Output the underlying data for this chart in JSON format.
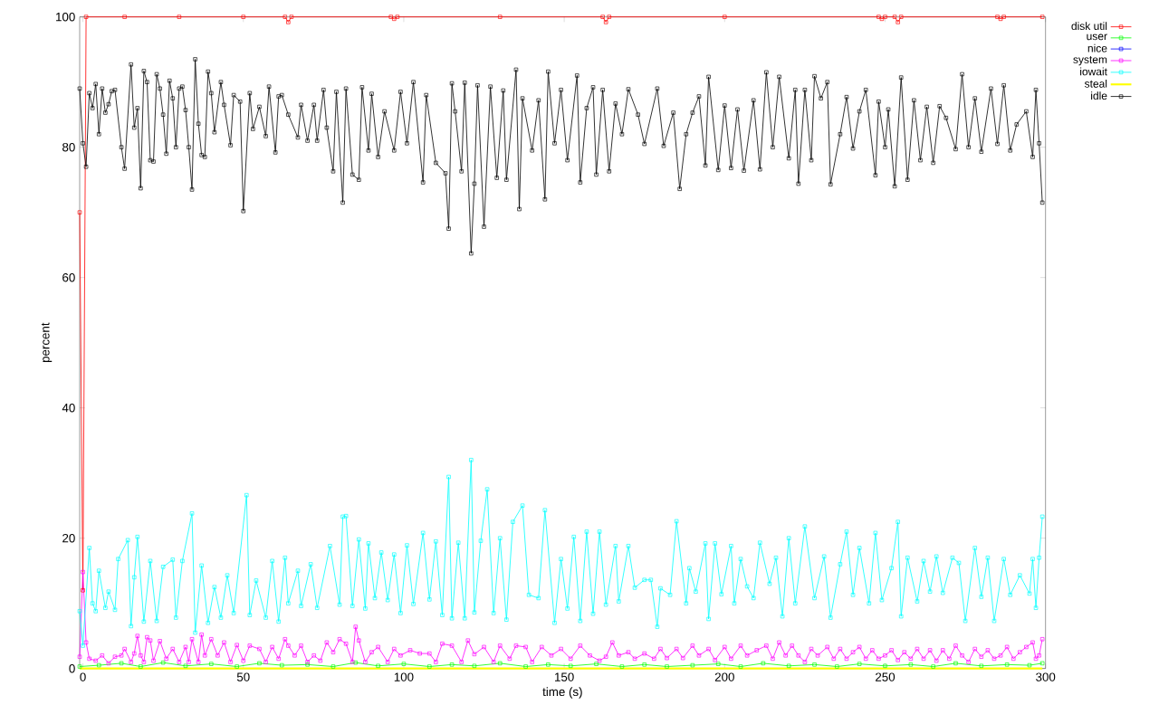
{
  "chart_data": {
    "type": "line",
    "xlabel": "time (s)",
    "ylabel": "percent",
    "xlim": [
      -1,
      300
    ],
    "xticks": [
      0,
      50,
      100,
      150,
      200,
      250,
      300
    ],
    "ylim": [
      0,
      100
    ],
    "yticks": [
      0,
      20,
      40,
      60,
      80,
      100
    ],
    "grid": false,
    "legend": "right",
    "line_style": "solid",
    "series": [
      {
        "name": "disk util",
        "color": "#ff0000",
        "marker": "square",
        "x": [
          -1,
          0,
          1,
          13,
          30,
          50,
          63,
          64,
          65,
          96,
          97,
          98,
          130,
          162,
          163,
          164,
          200,
          248,
          249,
          250,
          253,
          254,
          255,
          285,
          286,
          287,
          299
        ],
        "values": [
          70,
          12,
          100,
          100,
          100,
          100,
          100,
          99.2,
          100,
          100,
          99.7,
          100,
          100,
          100,
          99.2,
          100,
          100,
          100,
          99.7,
          100,
          100,
          99.2,
          100,
          100,
          99.7,
          100,
          100
        ]
      },
      {
        "name": "user",
        "color": "#00ff00",
        "marker": "square",
        "x": [
          -1,
          5,
          12,
          18,
          25,
          32,
          40,
          48,
          55,
          62,
          70,
          78,
          85,
          92,
          100,
          108,
          115,
          122,
          130,
          138,
          145,
          152,
          160,
          168,
          175,
          182,
          190,
          198,
          205,
          212,
          220,
          228,
          235,
          242,
          250,
          258,
          265,
          272,
          280,
          288,
          295,
          299
        ],
        "values": [
          0.3,
          0.5,
          0.8,
          0.3,
          0.9,
          0.4,
          0.7,
          0.3,
          0.8,
          0.5,
          0.6,
          0.3,
          0.9,
          0.4,
          0.7,
          0.3,
          0.6,
          0.4,
          0.8,
          0.3,
          0.6,
          0.4,
          0.7,
          0.3,
          0.6,
          0.3,
          0.5,
          0.7,
          0.3,
          0.8,
          0.4,
          0.6,
          0.3,
          0.7,
          0.4,
          0.6,
          0.3,
          0.8,
          0.4,
          0.6,
          0.5,
          0.8
        ]
      },
      {
        "name": "nice",
        "color": "#0000ff",
        "marker": "square"
      },
      {
        "name": "system",
        "color": "#ff00ff",
        "marker": "square",
        "x": [
          -1,
          0,
          1,
          2,
          4,
          6,
          8,
          10,
          12,
          13,
          15,
          16,
          17,
          18,
          19,
          20,
          21,
          22,
          24,
          26,
          28,
          30,
          32,
          33,
          34,
          36,
          37,
          38,
          40,
          42,
          44,
          46,
          48,
          50,
          52,
          55,
          57,
          59,
          61,
          63,
          64,
          66,
          68,
          70,
          72,
          74,
          76,
          78,
          80,
          82,
          84,
          85,
          86,
          88,
          90,
          92,
          95,
          97,
          99,
          102,
          105,
          108,
          110,
          112,
          115,
          118,
          120,
          122,
          125,
          128,
          130,
          133,
          135,
          138,
          140,
          143,
          146,
          149,
          152,
          155,
          158,
          161,
          163,
          165,
          167,
          170,
          172,
          175,
          178,
          180,
          182,
          185,
          187,
          190,
          192,
          195,
          197,
          200,
          202,
          205,
          207,
          210,
          213,
          215,
          217,
          219,
          221,
          223,
          225,
          227,
          229,
          232,
          234,
          236,
          238,
          240,
          242,
          244,
          246,
          248,
          250,
          252,
          254,
          256,
          258,
          260,
          262,
          264,
          266,
          268,
          270,
          272,
          274,
          276,
          278,
          280,
          282,
          284,
          286,
          288,
          290,
          292,
          294,
          296,
          297,
          298,
          299
        ],
        "values": [
          1.8,
          14.8,
          4,
          1.5,
          1.2,
          2,
          0.8,
          1.8,
          2,
          3,
          1,
          2.3,
          5,
          2,
          1,
          4.8,
          4.3,
          1.2,
          4.2,
          1.5,
          3,
          1,
          3.3,
          1,
          4.5,
          1,
          5.2,
          2,
          4.5,
          2,
          4,
          1,
          3.6,
          1.2,
          3.5,
          3,
          1,
          3.3,
          1.5,
          4.5,
          3.5,
          2,
          3.5,
          1,
          2,
          1.2,
          4,
          2.5,
          4.5,
          3.8,
          1,
          6.4,
          4.3,
          1,
          2.5,
          3.3,
          1,
          3,
          2,
          2.8,
          2.3,
          2.3,
          1,
          3.8,
          3.5,
          1,
          4.3,
          2.2,
          3.3,
          1,
          3.5,
          1.5,
          3.5,
          3.3,
          1,
          3.3,
          2,
          3,
          1.5,
          3.5,
          2,
          1.2,
          1.8,
          4,
          2,
          2.5,
          1.5,
          2.3,
          1.5,
          3,
          1.6,
          3,
          1.6,
          3.5,
          2,
          3,
          1.3,
          3.3,
          1.5,
          3.5,
          2,
          2.8,
          3.5,
          1.5,
          4,
          2,
          3.5,
          2,
          1,
          3,
          2,
          3.3,
          1.5,
          3,
          1.5,
          2.5,
          3.3,
          1.5,
          2.8,
          1.5,
          2,
          2.8,
          1.3,
          2.5,
          1.5,
          3,
          1.5,
          2.8,
          1.2,
          2.8,
          1.5,
          3.5,
          2,
          1,
          3,
          1.8,
          2.8,
          1.5,
          2,
          3.3,
          1.5,
          2.5,
          3.3,
          4,
          1.5,
          2,
          4.5
        ]
      },
      {
        "name": "iowait",
        "color": "#00ffff",
        "marker": "square",
        "x": [
          -1,
          0,
          2,
          3,
          4,
          5,
          7,
          8,
          10,
          11,
          14,
          15,
          16,
          17,
          19,
          21,
          23,
          25,
          28,
          29,
          31,
          34,
          35,
          37,
          39,
          41,
          43,
          45,
          47,
          51,
          52,
          54,
          57,
          59,
          61,
          63,
          64,
          67,
          68,
          71,
          73,
          77,
          80,
          81,
          82,
          84,
          86,
          88,
          89,
          91,
          93,
          95,
          97,
          99,
          101,
          103,
          106,
          108,
          110,
          112,
          114,
          115,
          117,
          119,
          121,
          122,
          124,
          126,
          128,
          130,
          132,
          134,
          137,
          139,
          142,
          144,
          147,
          149,
          151,
          153,
          155,
          157,
          159,
          161,
          163,
          166,
          167,
          170,
          172,
          175,
          177,
          179,
          180,
          183,
          185,
          188,
          189,
          191,
          194,
          195,
          197,
          199,
          202,
          203,
          205,
          207,
          209,
          211,
          214,
          216,
          218,
          220,
          222,
          225,
          228,
          231,
          233,
          236,
          238,
          240,
          242,
          245,
          247,
          249,
          252,
          254,
          255,
          257,
          260,
          262,
          264,
          266,
          268,
          271,
          273,
          275,
          278,
          280,
          282,
          284,
          287,
          289,
          292,
          295,
          296,
          297,
          298,
          299
        ],
        "values": [
          8.8,
          3.5,
          18.5,
          10,
          8.8,
          15,
          9.3,
          11.8,
          9,
          16.8,
          19.7,
          6.5,
          14,
          20.2,
          7.2,
          16.5,
          7.3,
          15.6,
          16.7,
          7.8,
          16.5,
          23.8,
          5.5,
          15.8,
          7,
          12.5,
          7.8,
          14.3,
          8.5,
          26.6,
          8.2,
          13.5,
          7.8,
          16.5,
          7.2,
          17,
          10,
          15,
          9.6,
          16,
          9.3,
          18.8,
          9.8,
          23.3,
          23.4,
          9.6,
          19.8,
          9.2,
          19.2,
          10.8,
          17.8,
          10.5,
          17.5,
          8.5,
          18.9,
          9.9,
          20.8,
          10.6,
          19.5,
          8.2,
          29.4,
          7.7,
          19.3,
          7.7,
          32,
          8.6,
          19.6,
          27.5,
          8.5,
          20,
          7.5,
          22.5,
          25,
          11.3,
          10.8,
          24.3,
          7,
          16.8,
          9.2,
          20.2,
          7.3,
          21,
          8.4,
          21,
          9.8,
          18.8,
          10.3,
          18.8,
          12.4,
          13.6,
          13.6,
          6.4,
          12.3,
          11.3,
          22.6,
          10,
          15.4,
          11.8,
          19.2,
          7.6,
          19.2,
          11.4,
          18.8,
          10,
          16.8,
          12.6,
          10.8,
          19.3,
          13,
          17,
          8,
          20,
          10,
          21.8,
          10.8,
          17.2,
          7.8,
          16,
          21,
          11.3,
          18.5,
          10,
          20.8,
          10.5,
          15.4,
          22.5,
          8,
          17,
          10.3,
          16.5,
          11.8,
          17.2,
          11.6,
          17,
          16.2,
          7.3,
          18.5,
          11,
          17,
          7.3,
          16.8,
          11.3,
          14.3,
          11.5,
          16.8,
          9.3,
          17,
          23.3
        ]
      },
      {
        "name": "steal",
        "color": "#ffff00",
        "marker": "none",
        "x": [
          -1,
          50,
          100,
          150,
          200,
          250,
          299
        ],
        "values": [
          0,
          0,
          0,
          0,
          0,
          0,
          0
        ]
      },
      {
        "name": "idle",
        "color": "#000000",
        "marker": "square",
        "x": [
          -1,
          0,
          1,
          2,
          3,
          4,
          5,
          6,
          7,
          8,
          9,
          10,
          12,
          13,
          15,
          16,
          17,
          18,
          19,
          20,
          21,
          22,
          23,
          24,
          25,
          26,
          27,
          28,
          29,
          30,
          31,
          32,
          33,
          34,
          35,
          36,
          37,
          38,
          39,
          40,
          41,
          43,
          44,
          46,
          47,
          49,
          50,
          52,
          53,
          55,
          57,
          58,
          60,
          61,
          62,
          64,
          67,
          68,
          70,
          72,
          73,
          75,
          76,
          78,
          79,
          81,
          82,
          84,
          86,
          87,
          89,
          90,
          92,
          94,
          97,
          99,
          101,
          103,
          106,
          107,
          110,
          113,
          114,
          115,
          116,
          118,
          119,
          121,
          122,
          123,
          125,
          127,
          129,
          131,
          132,
          135,
          136,
          137,
          140,
          142,
          144,
          145,
          147,
          149,
          151,
          154,
          155,
          157,
          159,
          160,
          162,
          164,
          166,
          168,
          170,
          173,
          175,
          179,
          181,
          184,
          186,
          188,
          190,
          192,
          194,
          195,
          198,
          200,
          202,
          204,
          206,
          209,
          211,
          213,
          215,
          217,
          220,
          222,
          223,
          225,
          227,
          228,
          230,
          232,
          233,
          236,
          238,
          240,
          242,
          244,
          247,
          248,
          250,
          251,
          253,
          255,
          257,
          259,
          261,
          263,
          265,
          267,
          269,
          272,
          274,
          276,
          278,
          280,
          283,
          285,
          287,
          289,
          291,
          294,
          296,
          297,
          298,
          299
        ],
        "values": [
          89,
          80.6,
          77,
          88.3,
          86,
          89.7,
          82,
          89,
          85.3,
          86.6,
          88.6,
          88.8,
          80,
          76.7,
          92.7,
          83,
          86,
          73.7,
          91.7,
          90,
          78,
          77.8,
          91.2,
          89,
          85,
          79,
          90.2,
          87.5,
          80,
          89,
          89.3,
          85.7,
          80,
          73.5,
          93.5,
          83.6,
          78.8,
          78.5,
          91.6,
          88.3,
          82.3,
          90,
          86.5,
          80.3,
          88,
          87,
          70.2,
          88.3,
          82.8,
          86.2,
          81.7,
          89.3,
          79.2,
          87.8,
          88,
          85,
          81.5,
          86.5,
          81,
          86.5,
          81,
          88.8,
          83,
          76.3,
          88.5,
          71.5,
          89,
          75.8,
          75,
          89.2,
          79.5,
          88.2,
          78.5,
          85.5,
          79.5,
          88.5,
          80.6,
          90,
          74.6,
          88,
          77.6,
          76,
          67.5,
          89.8,
          85.5,
          76.3,
          89.9,
          63.7,
          74.4,
          89.5,
          67.8,
          89.3,
          75.3,
          88.7,
          75,
          91.9,
          70.5,
          87.5,
          79.5,
          87.2,
          72,
          91.6,
          80.6,
          88.8,
          78,
          91,
          74.6,
          86,
          89.2,
          75.8,
          88.8,
          76.3,
          86.7,
          82,
          88.9,
          85,
          80.5,
          89,
          80.2,
          85.3,
          73.6,
          82,
          85.3,
          87.8,
          77.2,
          90.8,
          76.5,
          86.4,
          76.8,
          85.8,
          76.4,
          87.2,
          76.6,
          91.5,
          80,
          90.8,
          78.3,
          88.8,
          74.4,
          88.8,
          78,
          90.9,
          87.5,
          90,
          74.3,
          82,
          87.7,
          79.8,
          85.5,
          88.8,
          75.7,
          87,
          80,
          85.8,
          74,
          90.7,
          75,
          87.2,
          78,
          86.2,
          77.6,
          86.3,
          84.5,
          79.7,
          91.2,
          80,
          87.5,
          79.3,
          89,
          80.5,
          89.5,
          79.5,
          83.5,
          85.5,
          78.5,
          88.8,
          80.6,
          71.5
        ]
      }
    ]
  }
}
